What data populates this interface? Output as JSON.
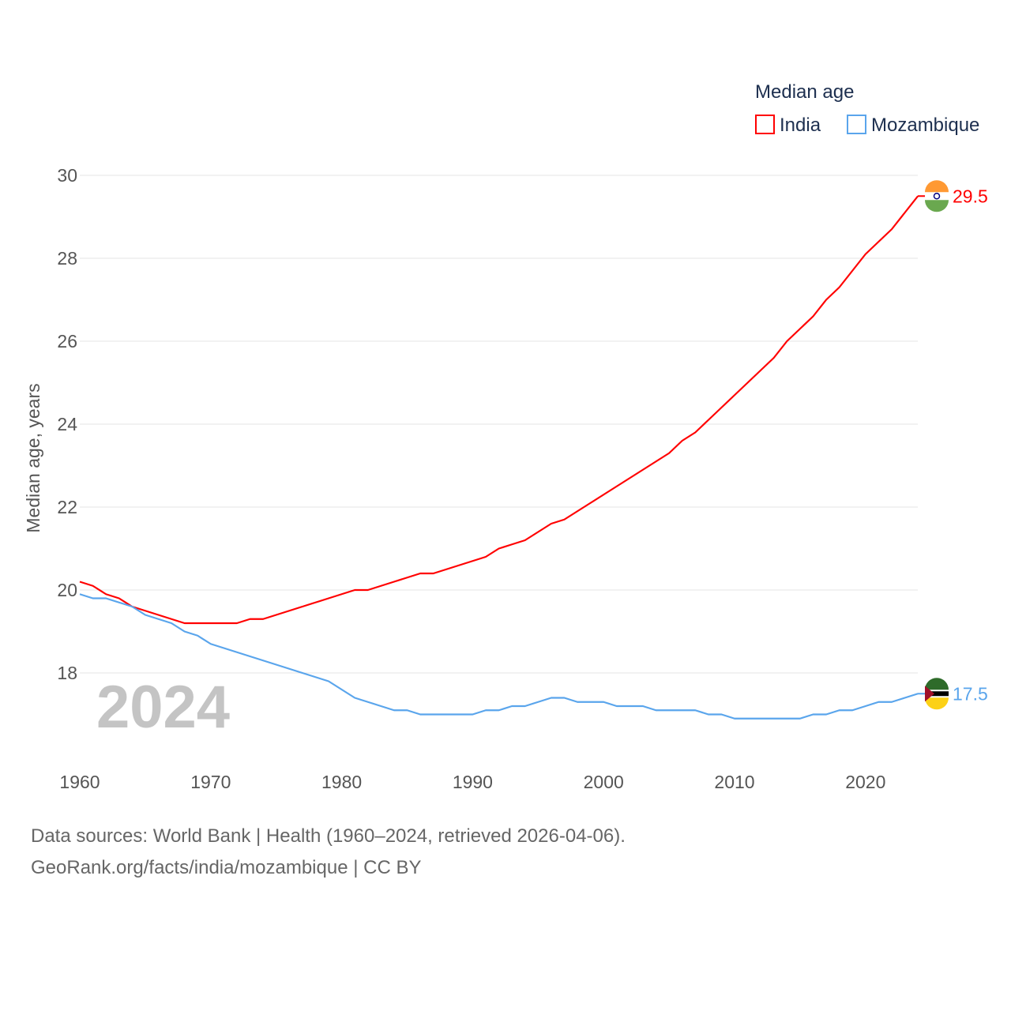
{
  "chart_data": {
    "type": "line",
    "title": "",
    "legend_title": "Median age",
    "legend_placement": "top-right",
    "ylabel": "Median age, years",
    "xlabel": "",
    "ylim": [
      16,
      30
    ],
    "xlim": [
      1960,
      2024
    ],
    "yticks": [
      "18",
      "20",
      "22",
      "24",
      "26",
      "28",
      "30"
    ],
    "xticks": [
      "1960",
      "1970",
      "1980",
      "1990",
      "2000",
      "2010",
      "2020"
    ],
    "year_watermark": "2024",
    "x": [
      1960,
      1961,
      1962,
      1963,
      1964,
      1965,
      1966,
      1967,
      1968,
      1969,
      1970,
      1971,
      1972,
      1973,
      1974,
      1975,
      1976,
      1977,
      1978,
      1979,
      1980,
      1981,
      1982,
      1983,
      1984,
      1985,
      1986,
      1987,
      1988,
      1989,
      1990,
      1991,
      1992,
      1993,
      1994,
      1995,
      1996,
      1997,
      1998,
      1999,
      2000,
      2001,
      2002,
      2003,
      2004,
      2005,
      2006,
      2007,
      2008,
      2009,
      2010,
      2011,
      2012,
      2013,
      2014,
      2015,
      2016,
      2017,
      2018,
      2019,
      2020,
      2021,
      2022,
      2023,
      2024
    ],
    "series": [
      {
        "name": "India",
        "color": "#ff0000",
        "end_label": "29.5",
        "values": [
          20.2,
          20.1,
          19.9,
          19.8,
          19.6,
          19.5,
          19.4,
          19.3,
          19.2,
          19.2,
          19.2,
          19.2,
          19.2,
          19.3,
          19.3,
          19.4,
          19.5,
          19.6,
          19.7,
          19.8,
          19.9,
          20.0,
          20.0,
          20.1,
          20.2,
          20.3,
          20.4,
          20.4,
          20.5,
          20.6,
          20.7,
          20.8,
          21.0,
          21.1,
          21.2,
          21.4,
          21.6,
          21.7,
          21.9,
          22.1,
          22.3,
          22.5,
          22.7,
          22.9,
          23.1,
          23.3,
          23.6,
          23.8,
          24.1,
          24.4,
          24.7,
          25.0,
          25.3,
          25.6,
          26.0,
          26.3,
          26.6,
          27.0,
          27.3,
          27.7,
          28.1,
          28.4,
          28.7,
          29.1,
          29.5
        ]
      },
      {
        "name": "Mozambique",
        "color": "#5aa5ec",
        "end_label": "17.5",
        "values": [
          19.9,
          19.8,
          19.8,
          19.7,
          19.6,
          19.4,
          19.3,
          19.2,
          19.0,
          18.9,
          18.7,
          18.6,
          18.5,
          18.4,
          18.3,
          18.2,
          18.1,
          18.0,
          17.9,
          17.8,
          17.6,
          17.4,
          17.3,
          17.2,
          17.1,
          17.1,
          17.0,
          17.0,
          17.0,
          17.0,
          17.0,
          17.1,
          17.1,
          17.2,
          17.2,
          17.3,
          17.4,
          17.4,
          17.3,
          17.3,
          17.3,
          17.2,
          17.2,
          17.2,
          17.1,
          17.1,
          17.1,
          17.1,
          17.0,
          17.0,
          16.9,
          16.9,
          16.9,
          16.9,
          16.9,
          16.9,
          17.0,
          17.0,
          17.1,
          17.1,
          17.2,
          17.3,
          17.3,
          17.4,
          17.5
        ]
      }
    ]
  },
  "footer": {
    "line1": "Data sources: World Bank | Health (1960–2024, retrieved 2026-04-06).",
    "line2": "GeoRank.org/facts/india/mozambique | CC BY"
  }
}
